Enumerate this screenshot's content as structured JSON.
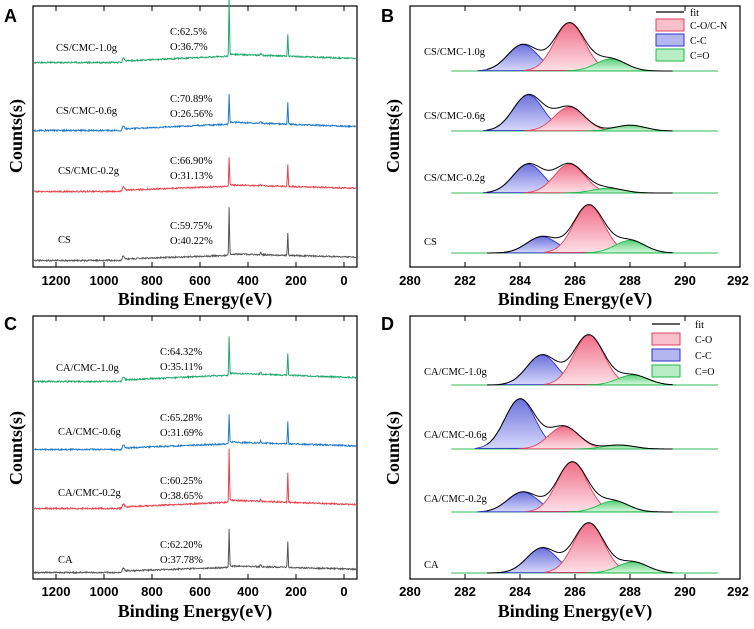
{
  "chart_data": [
    {
      "panel": "A",
      "type": "line",
      "xlabel": "Binding Energy(eV)",
      "ylabel": "Counts(s)",
      "xlim": [
        1350,
        0
      ],
      "xticks": [
        "1200",
        "1000",
        "800",
        "600",
        "400",
        "200",
        "0"
      ],
      "colors": {
        "0": "#555555",
        "1": "#e8414b",
        "2": "#1f78c8",
        "3": "#21a86b"
      },
      "series": [
        {
          "name": "CS",
          "c": "C:59.75%",
          "o": "O:40.22%"
        },
        {
          "name": "CS/CMC-0.2g",
          "c": "C:66.90%",
          "o": "O:31.13%"
        },
        {
          "name": "CS/CMC-0.6g",
          "c": "C:70.89%",
          "o": "O:26.56%"
        },
        {
          "name": "CS/CMC-1.0g",
          "c": "C:62.5%",
          "o": "O:36.7%"
        }
      ]
    },
    {
      "panel": "B",
      "type": "area",
      "xlabel": "Binding Energy(eV)",
      "ylabel": "Counts(s)",
      "xlim": [
        280,
        292
      ],
      "xticks": [
        "280",
        "282",
        "284",
        "286",
        "288",
        "290",
        "292"
      ],
      "legend": {
        "fit": "fit",
        "peak1": "C-O/C-N",
        "peak2": "C-C",
        "peak3": "C=O"
      },
      "series": [
        {
          "name": "CS",
          "peaks": {
            "cc": {
              "center": 284.8,
              "amp": 0.34
            },
            "co": {
              "center": 286.5,
              "amp": 1.0
            },
            "ceo": {
              "center": 288.0,
              "amp": 0.26
            }
          }
        },
        {
          "name": "CS/CMC-0.2g",
          "peaks": {
            "cc": {
              "center": 284.3,
              "amp": 0.6
            },
            "co": {
              "center": 285.8,
              "amp": 0.6
            },
            "ceo": {
              "center": 287.2,
              "amp": 0.1
            }
          }
        },
        {
          "name": "CS/CMC-0.6g",
          "peaks": {
            "cc": {
              "center": 284.3,
              "amp": 0.75
            },
            "co": {
              "center": 285.8,
              "amp": 0.5
            },
            "ceo": {
              "center": 288.0,
              "amp": 0.12
            }
          }
        },
        {
          "name": "CS/CMC-1.0g",
          "peaks": {
            "cc": {
              "center": 284.1,
              "amp": 0.55
            },
            "co": {
              "center": 285.8,
              "amp": 1.0
            },
            "ceo": {
              "center": 287.3,
              "amp": 0.25
            }
          }
        }
      ]
    },
    {
      "panel": "C",
      "type": "line",
      "xlabel": "Binding Energy(eV)",
      "ylabel": "Counts(s)",
      "xlim": [
        1350,
        0
      ],
      "xticks": [
        "1200",
        "1000",
        "800",
        "600",
        "400",
        "200",
        "0"
      ],
      "series": [
        {
          "name": "CA",
          "c": "C:62.20%",
          "o": "O:37.78%"
        },
        {
          "name": "CA/CMC-0.2g",
          "c": "C:60.25%",
          "o": "O:38.65%"
        },
        {
          "name": "CA/CMC-0.6g",
          "c": "C:65.28%",
          "o": "O:31.69%"
        },
        {
          "name": "CA/CMC-1.0g",
          "c": "C:64.32%",
          "o": "O:35.11%"
        }
      ]
    },
    {
      "panel": "D",
      "type": "area",
      "xlabel": "Binding Energy(eV)",
      "ylabel": "Counts(s)",
      "xlim": [
        280,
        292
      ],
      "xticks": [
        "280",
        "282",
        "284",
        "286",
        "288",
        "290",
        "292"
      ],
      "legend": {
        "fit": "fit",
        "peak1": "C-O",
        "peak2": "C-C",
        "peak3": "C=O"
      },
      "series": [
        {
          "name": "CA",
          "peaks": {
            "cc": {
              "center": 284.8,
              "amp": 0.5
            },
            "co": {
              "center": 286.5,
              "amp": 1.0
            },
            "ceo": {
              "center": 288.1,
              "amp": 0.22
            }
          }
        },
        {
          "name": "CA/CMC-0.2g",
          "peaks": {
            "cc": {
              "center": 284.1,
              "amp": 0.4
            },
            "co": {
              "center": 285.9,
              "amp": 1.0
            },
            "ceo": {
              "center": 287.4,
              "amp": 0.22
            }
          }
        },
        {
          "name": "CA/CMC-0.6g",
          "peaks": {
            "cc": {
              "center": 284.0,
              "amp": 1.0
            },
            "co": {
              "center": 285.6,
              "amp": 0.45
            },
            "ceo": {
              "center": 287.6,
              "amp": 0.08
            }
          }
        },
        {
          "name": "CA/CMC-1.0g",
          "peaks": {
            "cc": {
              "center": 284.8,
              "amp": 0.6
            },
            "co": {
              "center": 286.5,
              "amp": 1.0
            },
            "ceo": {
              "center": 288.1,
              "amp": 0.2
            }
          }
        }
      ]
    }
  ]
}
